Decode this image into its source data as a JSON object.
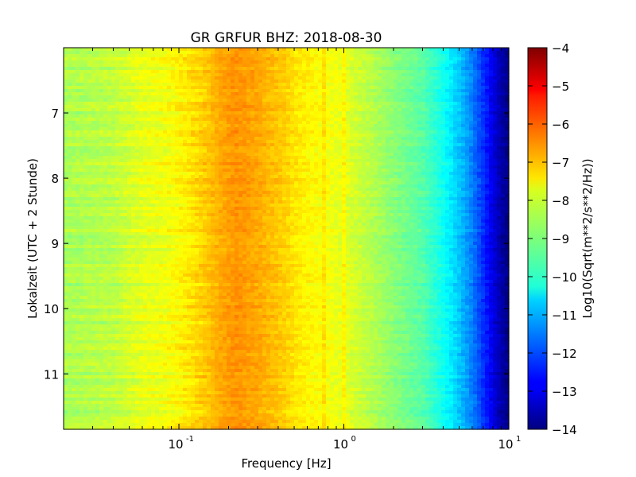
{
  "chart_data": {
    "type": "heatmap",
    "title": "GR GRFUR BHZ: 2018-08-30",
    "xlabel": "Frequency [Hz]",
    "ylabel": "Lokalzeit (UTC + 2 Stunde)",
    "x_scale": "log",
    "xlim": [
      0.02,
      10
    ],
    "x_ticks": [
      {
        "value": 0.1,
        "base": "10",
        "exp": "-1"
      },
      {
        "value": 1,
        "base": "10",
        "exp": "0"
      },
      {
        "value": 10,
        "base": "10",
        "exp": "1"
      }
    ],
    "ylim": [
      6.0,
      11.85
    ],
    "y_inverted": true,
    "y_ticks": [
      7,
      8,
      9,
      10,
      11
    ],
    "y_tick_labels": [
      "7",
      "8",
      "9",
      "10",
      "11"
    ],
    "colormap": "jet",
    "colorbar": {
      "label": "Log10(Sqrt(m**2/s**2/Hz))",
      "min": -14,
      "max": -4,
      "ticks": [
        -4,
        -5,
        -6,
        -7,
        -8,
        -9,
        -10,
        -11,
        -12,
        -13,
        -14
      ],
      "tick_labels": [
        "−4",
        "−5",
        "−6",
        "−7",
        "−8",
        "−9",
        "−10",
        "−11",
        "−12",
        "−13",
        "−14"
      ]
    },
    "spectrum_profile": {
      "frequency_hz": [
        0.02,
        0.04,
        0.06,
        0.08,
        0.1,
        0.14,
        0.18,
        0.22,
        0.3,
        0.4,
        0.55,
        0.75,
        1.0,
        1.5,
        2.0,
        3.0,
        4.0,
        5.0,
        6.0,
        7.0,
        8.0,
        9.0,
        10.0
      ],
      "log10_amplitude": [
        -8.6,
        -8.4,
        -8.0,
        -7.9,
        -7.7,
        -7.3,
        -6.9,
        -6.7,
        -6.9,
        -7.2,
        -7.6,
        -7.8,
        -8.0,
        -8.5,
        -8.9,
        -9.4,
        -10.1,
        -10.8,
        -11.5,
        -12.3,
        -13.0,
        -13.6,
        -14.0
      ]
    },
    "narrow_lines_hz": [
      0.76,
      1.0
    ],
    "grid": false
  }
}
